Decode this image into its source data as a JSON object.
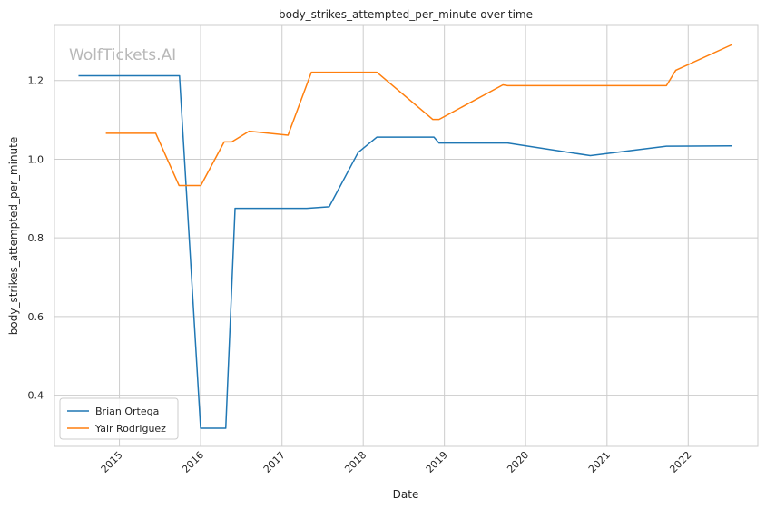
{
  "chart_data": {
    "type": "line",
    "title": "body_strikes_attempted_per_minute over time",
    "xlabel": "Date",
    "ylabel": "body_strikes_attempted_per_minute",
    "watermark": "WolfTickets.AI",
    "x_tick_labels": [
      "2015",
      "2016",
      "2017",
      "2018",
      "2019",
      "2020",
      "2021",
      "2022"
    ],
    "y_tick_labels": [
      "0.4",
      "0.6",
      "0.8",
      "1.0",
      "1.2"
    ],
    "ylim": [
      0.27,
      1.34
    ],
    "xlim": [
      "2014-03-15",
      "2022-11-10"
    ],
    "grid": true,
    "legend_position": "lower-left",
    "series": [
      {
        "name": "Brian Ortega",
        "color": "#1f77b4",
        "points": [
          [
            "2014-07-01",
            1.212
          ],
          [
            "2015-09-28",
            1.212
          ],
          [
            "2016-01-01",
            0.316
          ],
          [
            "2016-04-23",
            0.316
          ],
          [
            "2016-06-04",
            0.875
          ],
          [
            "2017-04-22",
            0.875
          ],
          [
            "2017-08-01",
            0.879
          ],
          [
            "2017-12-09",
            1.017
          ],
          [
            "2018-03-03",
            1.056
          ],
          [
            "2018-11-15",
            1.056
          ],
          [
            "2018-12-08",
            1.041
          ],
          [
            "2019-10-12",
            1.041
          ],
          [
            "2020-10-18",
            1.009
          ],
          [
            "2021-09-25",
            1.033
          ],
          [
            "2022-07-16",
            1.034
          ]
        ]
      },
      {
        "name": "Yair Rodriguez",
        "color": "#ff7f0e",
        "points": [
          [
            "2014-11-01",
            1.066
          ],
          [
            "2015-06-13",
            1.066
          ],
          [
            "2015-09-26",
            0.933
          ],
          [
            "2016-01-02",
            0.933
          ],
          [
            "2016-04-16",
            1.044
          ],
          [
            "2016-05-20",
            1.044
          ],
          [
            "2016-08-06",
            1.071
          ],
          [
            "2017-01-28",
            1.061
          ],
          [
            "2017-05-13",
            1.221
          ],
          [
            "2018-03-03",
            1.221
          ],
          [
            "2018-11-10",
            1.101
          ],
          [
            "2018-12-08",
            1.101
          ],
          [
            "2019-09-21",
            1.189
          ],
          [
            "2019-10-12",
            1.187
          ],
          [
            "2021-09-25",
            1.187
          ],
          [
            "2021-11-06",
            1.226
          ],
          [
            "2022-07-16",
            1.291
          ]
        ]
      }
    ]
  }
}
